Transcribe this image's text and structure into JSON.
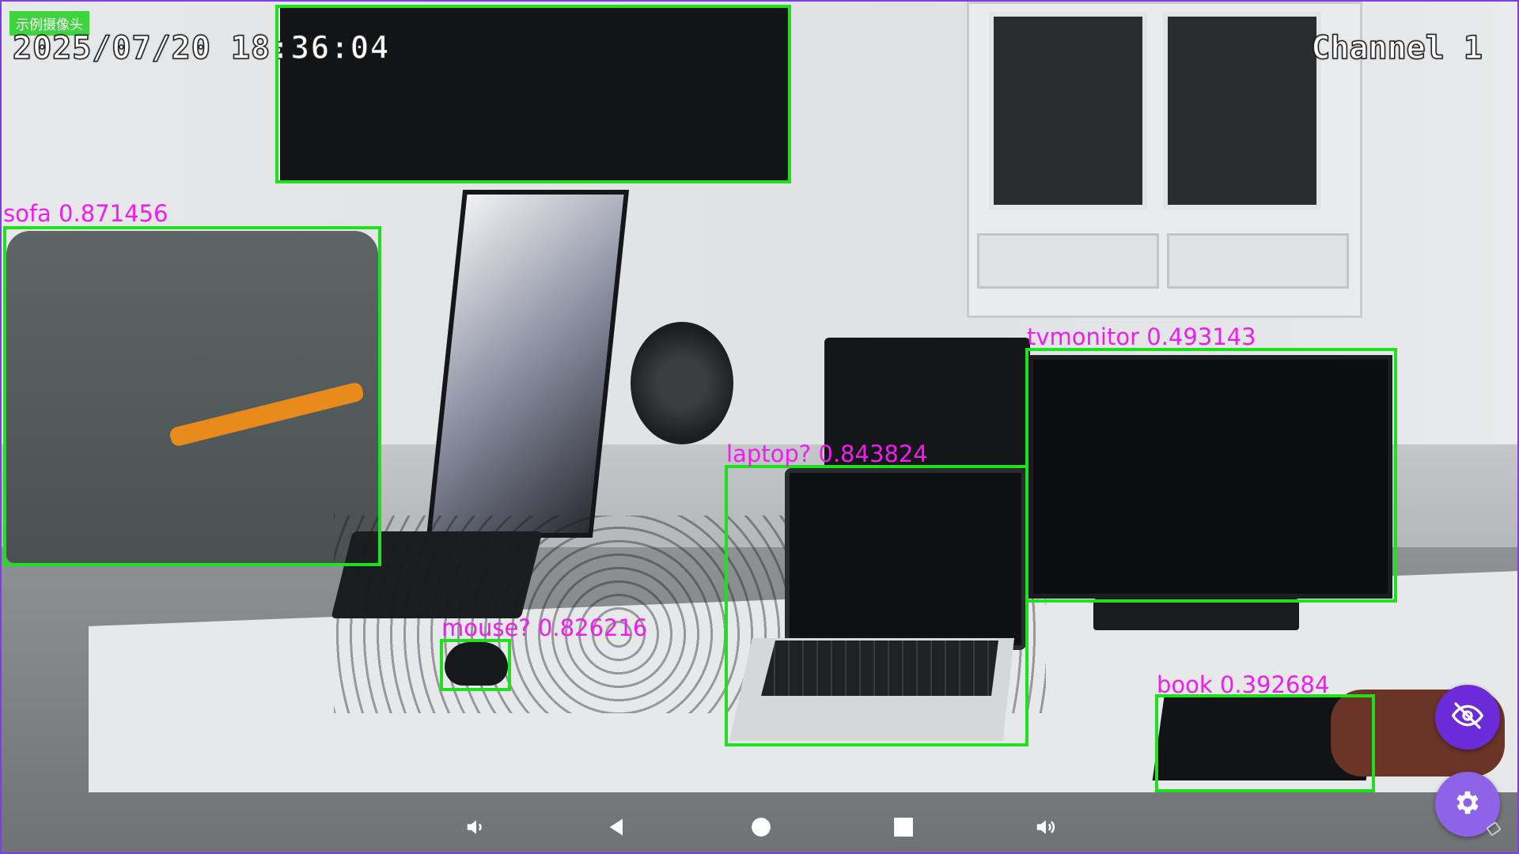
{
  "camera": {
    "name": "示例摄像头",
    "timestamp": "2025/07/20 18:36:04",
    "channel": "Channel 1"
  },
  "detections": [
    {
      "label": "",
      "class_name": "tv",
      "score_text": ""
    },
    {
      "label": "sofa 0.871456"
    },
    {
      "label": "tvmonitor 0.493143"
    },
    {
      "label": "laptop? 0.843824"
    },
    {
      "label": "mouse? 0.826216"
    },
    {
      "label": "book 0.392684"
    }
  ],
  "buttons": {
    "hide_overlay_icon": "eye-off-icon",
    "settings_icon": "gear-icon"
  },
  "nav": {
    "icons": [
      "volume-down-icon",
      "back-icon",
      "home-icon",
      "recents-icon",
      "volume-up-icon",
      "rotate-icon"
    ]
  },
  "colors": {
    "box": "#1fe01f",
    "label": "#f01cf0",
    "accent": "#6c2bd9",
    "accent_light": "#8e63e8"
  }
}
